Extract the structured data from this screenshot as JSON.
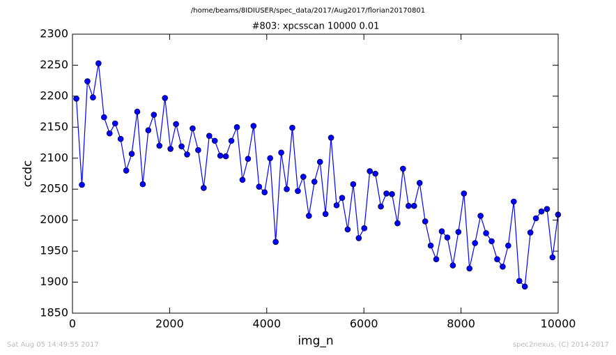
{
  "chart_data": {
    "type": "line",
    "suptitle": "/home/beams/8IDIUSER/spec_data/2017/Aug2017/florian20170801",
    "title": "#803: xpcsscan 10000 0.01",
    "xlabel": "img_n",
    "ylabel": "ccdc",
    "footer_left": "Sat Aug 05 14:49:55 2017",
    "footer_right": "spec2nexus, (C) 2014-2017",
    "color": "#0000ff",
    "x": [
      80,
      194,
      308,
      422,
      536,
      650,
      764,
      878,
      992,
      1106,
      1220,
      1334,
      1448,
      1562,
      1676,
      1790,
      1904,
      2018,
      2132,
      2246,
      2360,
      2474,
      2588,
      2702,
      2816,
      2930,
      3044,
      3158,
      3272,
      3386,
      3500,
      3614,
      3728,
      3842,
      3956,
      4070,
      4184,
      4298,
      4412,
      4526,
      4640,
      4754,
      4868,
      4982,
      5096,
      5210,
      5324,
      5438,
      5552,
      5666,
      5780,
      5894,
      6008,
      6122,
      6236,
      6350,
      6464,
      6578,
      6692,
      6806,
      6920,
      7034,
      7148,
      7262,
      7376,
      7490,
      7604,
      7718,
      7832,
      7946,
      8060,
      8174,
      8288,
      8402,
      8516,
      8630,
      8744,
      8858,
      8972,
      9086,
      9200,
      9314,
      9428,
      9542,
      9656,
      9770,
      9884,
      9998
    ],
    "values": [
      2196,
      2057,
      2224,
      2198,
      2253,
      2166,
      2140,
      2156,
      2131,
      2080,
      2107,
      2175,
      2058,
      2145,
      2170,
      2120,
      2197,
      2115,
      2155,
      2119,
      2106,
      2148,
      2113,
      2052,
      2136,
      2128,
      2104,
      2103,
      2128,
      2150,
      2065,
      2099,
      2152,
      2054,
      2045,
      2100,
      1965,
      2109,
      2050,
      2149,
      2047,
      2070,
      2007,
      2062,
      2094,
      2010,
      2133,
      2024,
      2036,
      1985,
      2058,
      1971,
      1987,
      2079,
      2075,
      2022,
      2043,
      2042,
      1995,
      2083,
      2023,
      2023,
      2060,
      1998,
      1959,
      1937,
      1982,
      1972,
      1927,
      1981,
      2043,
      1922,
      1963,
      2007,
      1979,
      1966,
      1937,
      1925,
      1959,
      2030,
      1902,
      1893,
      1980,
      2003,
      2014,
      2018,
      1940,
      2009
    ],
    "xlim": [
      0,
      10000
    ],
    "xticks": [
      0,
      2000,
      4000,
      6000,
      8000,
      10000
    ],
    "ylim": [
      1850,
      2300
    ],
    "yticks": [
      1850,
      1900,
      1950,
      2000,
      2050,
      2100,
      2150,
      2200,
      2250,
      2300
    ]
  }
}
